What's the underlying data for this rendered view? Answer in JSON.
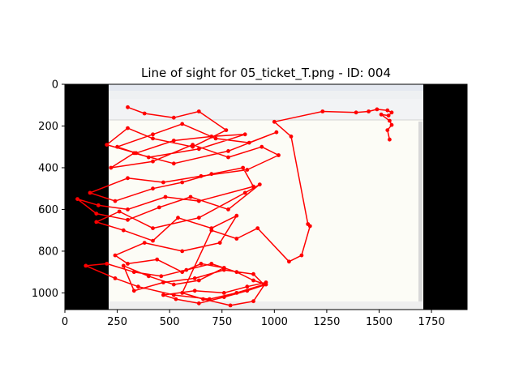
{
  "chart_data": {
    "type": "line",
    "title": "Line of sight for 05_ticket_T.png - ID: 004",
    "xlabel": "",
    "ylabel": "",
    "xlim": [
      0,
      1920
    ],
    "ylim": [
      1080,
      0
    ],
    "x_ticks": [
      0,
      250,
      500,
      750,
      1000,
      1250,
      1500,
      1750
    ],
    "y_ticks": [
      0,
      200,
      400,
      600,
      800,
      1000
    ],
    "x_tick_labels": [
      "0",
      "250",
      "500",
      "750",
      "1000",
      "1250",
      "1500",
      "1750"
    ],
    "y_tick_labels": [
      "0",
      "200",
      "400",
      "600",
      "800",
      "1000"
    ],
    "grid": false,
    "background_image": "screenshot of a ticket / email client window",
    "line_color": "#ff0000",
    "marker": "circle",
    "series": [
      {
        "x": [
          300,
          380,
          520,
          640,
          770,
          610,
          420,
          300,
          200,
          340,
          520,
          700,
          860,
          640,
          400,
          250,
          420,
          560,
          720,
          880,
          1010,
          780,
          520,
          330,
          220,
          420,
          610,
          780,
          940,
          1020,
          870,
          650,
          470,
          300,
          120,
          240,
          420,
          560,
          700,
          850,
          900,
          640,
          480,
          300,
          160,
          60,
          150,
          300,
          450,
          600,
          780,
          930,
          860,
          640,
          420,
          260,
          150,
          280,
          420,
          540,
          700,
          820,
          740,
          560,
          380,
          240,
          300,
          440,
          560,
          650,
          760,
          640,
          520,
          400,
          280,
          330,
          470,
          620,
          760,
          900,
          950,
          820,
          690,
          520,
          350,
          240,
          100,
          200,
          330,
          460,
          580,
          700,
          820,
          900,
          960,
          870,
          760,
          640,
          530,
          470,
          620,
          760,
          870,
          960,
          900,
          790,
          660,
          560,
          700,
          820,
          920,
          1070,
          1130,
          1170,
          1160,
          1080,
          1000,
          1230,
          1390,
          1450,
          1490,
          1540,
          1560,
          1545,
          1510,
          1550,
          1560,
          1540,
          1550
        ],
        "y": [
          110,
          140,
          160,
          130,
          220,
          300,
          260,
          210,
          290,
          330,
          270,
          250,
          240,
          310,
          350,
          300,
          240,
          190,
          260,
          280,
          230,
          320,
          380,
          330,
          400,
          370,
          290,
          350,
          300,
          340,
          410,
          440,
          470,
          450,
          520,
          560,
          500,
          470,
          430,
          400,
          490,
          560,
          540,
          600,
          580,
          550,
          620,
          650,
          590,
          540,
          600,
          480,
          520,
          640,
          690,
          610,
          660,
          700,
          750,
          640,
          690,
          630,
          760,
          800,
          760,
          820,
          860,
          840,
          900,
          860,
          880,
          940,
          960,
          920,
          870,
          990,
          950,
          930,
          890,
          910,
          960,
          1000,
          1030,
          1010,
          970,
          930,
          870,
          860,
          900,
          920,
          890,
          860,
          900,
          940,
          960,
          990,
          1020,
          1050,
          1030,
          1010,
          990,
          1000,
          970,
          950,
          1040,
          1060,
          1030,
          1000,
          700,
          740,
          690,
          850,
          820,
          680,
          670,
          250,
          180,
          130,
          135,
          130,
          120,
          125,
          135,
          150,
          145,
          175,
          195,
          220,
          265
        ]
      }
    ]
  }
}
